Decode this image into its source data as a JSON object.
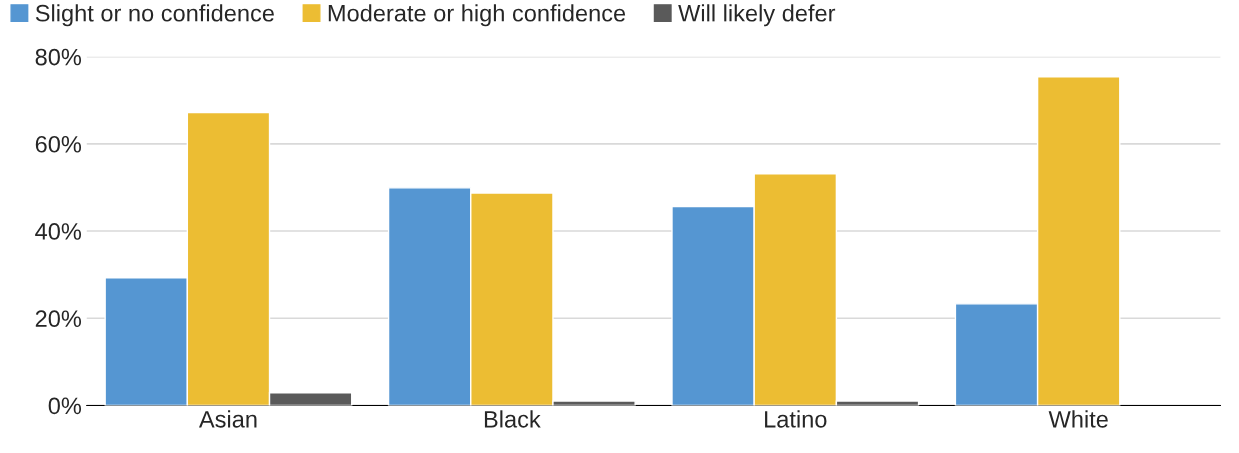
{
  "chart_data": {
    "type": "bar",
    "categories": [
      "Asian",
      "Black",
      "Latino",
      "White"
    ],
    "series": [
      {
        "name": "Slight or no confidence",
        "color": "#5596d2",
        "values": [
          29.3,
          49.9,
          45.6,
          23.3
        ]
      },
      {
        "name": "Moderate or high confidence",
        "color": "#ecbd33",
        "values": [
          67.2,
          48.7,
          53.1,
          75.4
        ]
      },
      {
        "name": "Will likely defer",
        "color": "#5a5a5a",
        "values": [
          2.9,
          1.0,
          1.0,
          null
        ]
      }
    ],
    "ylim": [
      0,
      80
    ],
    "yticks": [
      {
        "value": 0,
        "label": "0%"
      },
      {
        "value": 20,
        "label": "20%"
      },
      {
        "value": 40,
        "label": "40%"
      },
      {
        "value": 60,
        "label": "60%"
      },
      {
        "value": 80,
        "label": "80%"
      }
    ],
    "grid": "y",
    "legend": "top left"
  }
}
